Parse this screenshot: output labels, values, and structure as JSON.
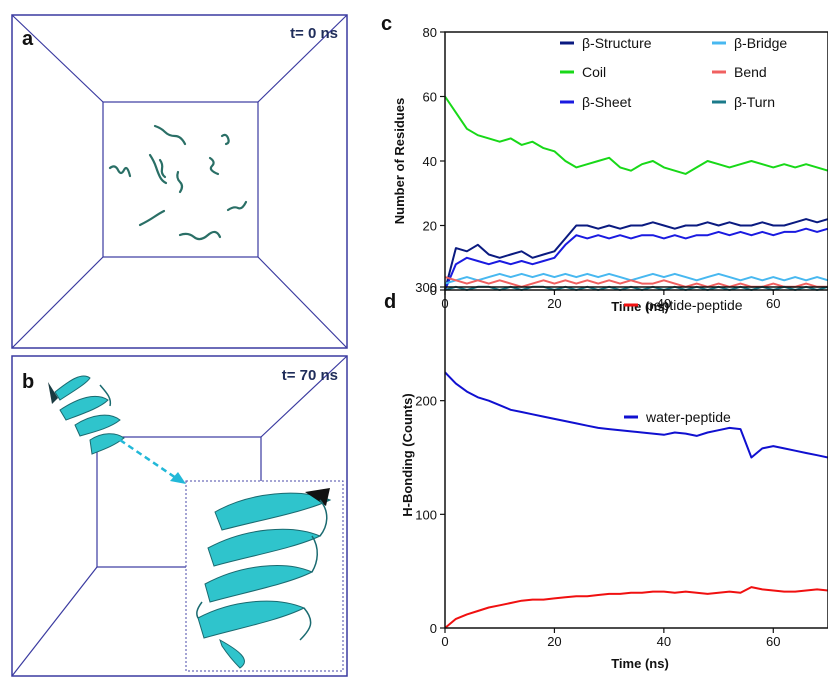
{
  "panel_a": {
    "label": "a",
    "time": "t= 0 ns"
  },
  "panel_b": {
    "label": "b",
    "time": "t= 70 ns"
  },
  "colors": {
    "box": "#3a3aa0",
    "peptide_dark": "#2a6f66",
    "peptide_light": "#2fc4cc",
    "arrow": "#22b8d8",
    "beta_structure": "#0a1a80",
    "coil": "#18d818",
    "beta_sheet": "#1a1ae0",
    "beta_bridge": "#48b8f0",
    "bend": "#f06060",
    "beta_turn": "#1a7a8a",
    "peptide_peptide": "#f01010",
    "water_peptide": "#1010d0"
  },
  "chart_data": [
    {
      "panel": "c",
      "type": "line",
      "xlabel": "Time (ns)",
      "ylabel": "Number of Residues",
      "xlim": [
        0,
        70
      ],
      "ylim": [
        0,
        80
      ],
      "xticks": [
        0,
        20,
        40,
        60
      ],
      "yticks": [
        0,
        20,
        40,
        60,
        80
      ],
      "legend_placement": "top",
      "series": [
        {
          "name": "β-Structure",
          "key": "beta_structure",
          "x": [
            0,
            2,
            4,
            6,
            8,
            10,
            12,
            14,
            16,
            18,
            20,
            22,
            24,
            26,
            28,
            30,
            32,
            34,
            36,
            38,
            40,
            42,
            44,
            46,
            48,
            50,
            52,
            54,
            56,
            58,
            60,
            62,
            64,
            66,
            68,
            70
          ],
          "y": [
            0,
            13,
            12,
            14,
            11,
            10,
            11,
            12,
            10,
            11,
            12,
            16,
            20,
            20,
            19,
            20,
            19,
            20,
            20,
            21,
            20,
            19,
            20,
            20,
            21,
            20,
            21,
            20,
            20,
            21,
            20,
            20,
            21,
            22,
            21,
            22
          ]
        },
        {
          "name": "Coil",
          "key": "coil",
          "x": [
            0,
            2,
            4,
            6,
            8,
            10,
            12,
            14,
            16,
            18,
            20,
            22,
            24,
            26,
            28,
            30,
            32,
            34,
            36,
            38,
            40,
            42,
            44,
            46,
            48,
            50,
            52,
            54,
            56,
            58,
            60,
            62,
            64,
            66,
            68,
            70
          ],
          "y": [
            60,
            55,
            50,
            48,
            47,
            46,
            47,
            45,
            46,
            44,
            43,
            40,
            38,
            39,
            40,
            41,
            38,
            37,
            39,
            40,
            38,
            37,
            36,
            38,
            40,
            39,
            38,
            39,
            40,
            39,
            38,
            39,
            38,
            39,
            38,
            37
          ]
        },
        {
          "name": "β-Sheet",
          "key": "beta_sheet",
          "x": [
            0,
            2,
            4,
            6,
            8,
            10,
            12,
            14,
            16,
            18,
            20,
            22,
            24,
            26,
            28,
            30,
            32,
            34,
            36,
            38,
            40,
            42,
            44,
            46,
            48,
            50,
            52,
            54,
            56,
            58,
            60,
            62,
            64,
            66,
            68,
            70
          ],
          "y": [
            0,
            8,
            10,
            9,
            8,
            9,
            8,
            9,
            8,
            9,
            10,
            14,
            17,
            16,
            17,
            16,
            17,
            16,
            17,
            17,
            16,
            17,
            16,
            17,
            17,
            18,
            17,
            18,
            17,
            18,
            17,
            18,
            18,
            19,
            18,
            19
          ]
        },
        {
          "name": "β-Bridge",
          "key": "beta_bridge",
          "x": [
            0,
            2,
            4,
            6,
            8,
            10,
            12,
            14,
            16,
            18,
            20,
            22,
            24,
            26,
            28,
            30,
            32,
            34,
            36,
            38,
            40,
            42,
            44,
            46,
            48,
            50,
            52,
            54,
            56,
            58,
            60,
            62,
            64,
            66,
            68,
            70
          ],
          "y": [
            2,
            3,
            4,
            3,
            4,
            5,
            4,
            5,
            4,
            5,
            4,
            5,
            4,
            5,
            4,
            5,
            4,
            3,
            4,
            5,
            4,
            5,
            4,
            3,
            4,
            5,
            4,
            3,
            4,
            3,
            4,
            3,
            4,
            3,
            4,
            3
          ]
        },
        {
          "name": "Bend",
          "key": "bend",
          "x": [
            0,
            2,
            4,
            6,
            8,
            10,
            12,
            14,
            16,
            18,
            20,
            22,
            24,
            26,
            28,
            30,
            32,
            34,
            36,
            38,
            40,
            42,
            44,
            46,
            48,
            50,
            52,
            54,
            56,
            58,
            60,
            62,
            64,
            66,
            68,
            70
          ],
          "y": [
            4,
            3,
            2,
            3,
            2,
            3,
            2,
            1,
            2,
            3,
            2,
            3,
            2,
            3,
            2,
            3,
            2,
            3,
            2,
            2,
            3,
            2,
            1,
            2,
            1,
            2,
            1,
            2,
            1,
            1,
            2,
            1,
            1,
            2,
            1,
            1
          ]
        },
        {
          "name": "β-Turn",
          "key": "beta_turn",
          "x": [
            0,
            2,
            4,
            6,
            8,
            10,
            12,
            14,
            16,
            18,
            20,
            22,
            24,
            26,
            28,
            30,
            32,
            34,
            36,
            38,
            40,
            42,
            44,
            46,
            48,
            50,
            52,
            54,
            56,
            58,
            60,
            62,
            64,
            66,
            68,
            70
          ],
          "y": [
            0,
            1,
            0,
            1,
            1,
            0,
            1,
            0,
            1,
            1,
            0,
            1,
            0,
            1,
            0,
            1,
            0,
            1,
            0,
            1,
            0,
            1,
            0,
            1,
            0,
            1,
            0,
            1,
            0,
            1,
            0,
            1,
            0,
            1,
            0,
            1
          ]
        }
      ]
    },
    {
      "panel": "d",
      "type": "line",
      "xlabel": "Time (ns)",
      "ylabel": "H-Bonding (Counts)",
      "xlim": [
        0,
        70
      ],
      "ylim": [
        0,
        300
      ],
      "xticks": [
        0,
        20,
        40,
        60
      ],
      "yticks": [
        0,
        100,
        200,
        300
      ],
      "legend_placement": "top-right",
      "series": [
        {
          "name": "peptide-peptide",
          "key": "peptide_peptide",
          "x": [
            0,
            2,
            4,
            6,
            8,
            10,
            12,
            14,
            16,
            18,
            20,
            22,
            24,
            26,
            28,
            30,
            32,
            34,
            36,
            38,
            40,
            42,
            44,
            46,
            48,
            50,
            52,
            54,
            56,
            58,
            60,
            62,
            64,
            66,
            68,
            70
          ],
          "y": [
            0,
            8,
            12,
            15,
            18,
            20,
            22,
            24,
            25,
            25,
            26,
            27,
            28,
            28,
            29,
            30,
            30,
            31,
            31,
            32,
            32,
            31,
            32,
            31,
            30,
            31,
            32,
            31,
            36,
            34,
            33,
            32,
            32,
            33,
            34,
            33
          ]
        },
        {
          "name": "water-peptide",
          "key": "water_peptide",
          "x": [
            0,
            2,
            4,
            6,
            8,
            10,
            12,
            14,
            16,
            18,
            20,
            22,
            24,
            26,
            28,
            30,
            32,
            34,
            36,
            38,
            40,
            42,
            44,
            46,
            48,
            50,
            52,
            54,
            56,
            58,
            60,
            62,
            64,
            66,
            68,
            70
          ],
          "y": [
            225,
            215,
            208,
            203,
            200,
            196,
            192,
            190,
            188,
            186,
            184,
            182,
            180,
            178,
            176,
            175,
            174,
            173,
            172,
            171,
            170,
            172,
            171,
            169,
            172,
            174,
            176,
            175,
            150,
            158,
            160,
            158,
            156,
            154,
            152,
            150
          ]
        }
      ]
    }
  ]
}
